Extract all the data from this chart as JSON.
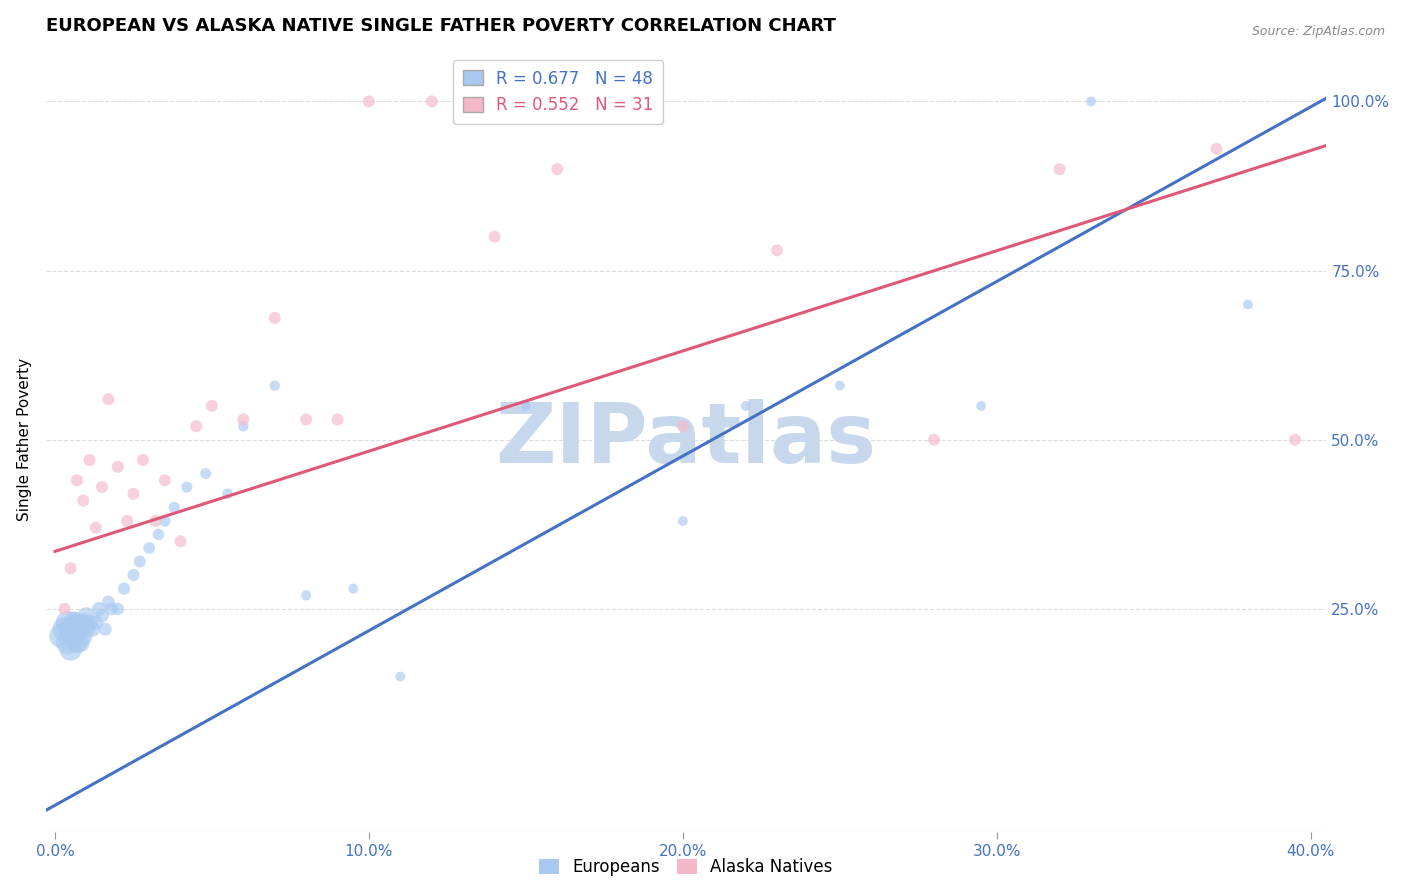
{
  "title": "EUROPEAN VS ALASKA NATIVE SINGLE FATHER POVERTY CORRELATION CHART",
  "source": "Source: ZipAtlas.com",
  "ylabel": "Single Father Poverty",
  "xlim": [
    -0.003,
    0.405
  ],
  "ylim": [
    -0.08,
    1.08
  ],
  "xticks": [
    0.0,
    0.1,
    0.2,
    0.3,
    0.4
  ],
  "xtick_labels": [
    "0.0%",
    "10.0%",
    "20.0%",
    "30.0%",
    "40.0%"
  ],
  "yticks": [
    0.25,
    0.5,
    0.75,
    1.0
  ],
  "ytick_labels": [
    "25.0%",
    "50.0%",
    "75.0%",
    "100.0%"
  ],
  "blue_color": "#A8C8F0",
  "pink_color": "#F5B8C8",
  "blue_line_color": "#4472C4",
  "pink_line_color": "#E05878",
  "R_blue": 0.677,
  "N_blue": 48,
  "R_pink": 0.552,
  "N_pink": 31,
  "blue_line": [
    [
      -0.003,
      -0.048
    ],
    [
      0.405,
      1.005
    ]
  ],
  "pink_line": [
    [
      0.0,
      0.335
    ],
    [
      0.405,
      0.935
    ]
  ],
  "europeans_x": [
    0.002,
    0.003,
    0.004,
    0.004,
    0.005,
    0.005,
    0.006,
    0.006,
    0.006,
    0.007,
    0.007,
    0.008,
    0.008,
    0.009,
    0.009,
    0.01,
    0.01,
    0.011,
    0.012,
    0.013,
    0.014,
    0.015,
    0.016,
    0.017,
    0.018,
    0.02,
    0.022,
    0.025,
    0.027,
    0.03,
    0.033,
    0.035,
    0.038,
    0.042,
    0.048,
    0.055,
    0.06,
    0.07,
    0.08,
    0.095,
    0.11,
    0.15,
    0.2,
    0.22,
    0.25,
    0.295,
    0.33,
    0.38
  ],
  "europeans_y": [
    0.21,
    0.22,
    0.2,
    0.23,
    0.19,
    0.22,
    0.21,
    0.23,
    0.22,
    0.2,
    0.23,
    0.22,
    0.2,
    0.21,
    0.23,
    0.22,
    0.24,
    0.23,
    0.22,
    0.23,
    0.25,
    0.24,
    0.22,
    0.26,
    0.25,
    0.25,
    0.28,
    0.3,
    0.32,
    0.34,
    0.36,
    0.38,
    0.4,
    0.43,
    0.45,
    0.42,
    0.52,
    0.58,
    0.27,
    0.28,
    0.15,
    0.55,
    0.38,
    0.55,
    0.58,
    0.55,
    1.0,
    0.7
  ],
  "europeans_sizes": [
    300,
    300,
    280,
    280,
    260,
    260,
    250,
    240,
    230,
    220,
    210,
    200,
    190,
    180,
    170,
    160,
    150,
    130,
    120,
    110,
    100,
    95,
    90,
    88,
    85,
    80,
    78,
    76,
    74,
    72,
    70,
    68,
    66,
    64,
    62,
    60,
    58,
    56,
    54,
    52,
    50,
    50,
    50,
    50,
    50,
    50,
    50,
    50
  ],
  "alaska_x": [
    0.003,
    0.005,
    0.007,
    0.009,
    0.011,
    0.013,
    0.015,
    0.017,
    0.02,
    0.023,
    0.025,
    0.028,
    0.032,
    0.035,
    0.04,
    0.045,
    0.05,
    0.06,
    0.07,
    0.08,
    0.09,
    0.1,
    0.12,
    0.14,
    0.16,
    0.2,
    0.23,
    0.28,
    0.32,
    0.37,
    0.395
  ],
  "alaska_y": [
    0.25,
    0.31,
    0.44,
    0.41,
    0.47,
    0.37,
    0.43,
    0.56,
    0.46,
    0.38,
    0.42,
    0.47,
    0.38,
    0.44,
    0.35,
    0.52,
    0.55,
    0.53,
    0.68,
    0.53,
    0.53,
    1.0,
    1.0,
    0.8,
    0.9,
    0.52,
    0.78,
    0.5,
    0.9,
    0.93,
    0.5
  ],
  "background_color": "#FFFFFF",
  "grid_color": "#DDDDDD",
  "title_fontsize": 13,
  "axis_label_fontsize": 11,
  "tick_fontsize": 11,
  "legend_fontsize": 12,
  "watermark_color": "#C8D8EC",
  "watermark_fontsize": 60
}
